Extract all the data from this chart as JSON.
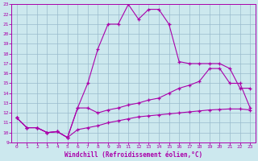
{
  "xlabel": "Windchill (Refroidissement éolien,°C)",
  "bg_color": "#cce8ee",
  "line_color": "#aa00aa",
  "grid_color": "#99bbcc",
  "xlim": [
    -0.5,
    23.5
  ],
  "ylim": [
    9,
    23
  ],
  "xticks": [
    0,
    1,
    2,
    3,
    4,
    5,
    6,
    7,
    8,
    9,
    10,
    11,
    12,
    13,
    14,
    15,
    16,
    17,
    18,
    19,
    20,
    21,
    22,
    23
  ],
  "yticks": [
    9,
    10,
    11,
    12,
    13,
    14,
    15,
    16,
    17,
    18,
    19,
    20,
    21,
    22,
    23
  ],
  "line1_x": [
    0,
    1,
    2,
    3,
    4,
    5,
    6,
    7,
    8,
    9,
    10,
    11,
    12,
    13,
    14,
    15,
    16,
    17,
    18,
    19,
    20,
    21,
    22,
    23
  ],
  "line1_y": [
    11.5,
    10.5,
    10.5,
    10.0,
    10.1,
    9.5,
    12.5,
    15.0,
    18.5,
    21.0,
    21.0,
    23.0,
    21.5,
    22.5,
    22.5,
    21.0,
    17.2,
    17.0,
    17.0,
    17.0,
    17.0,
    16.5,
    14.5,
    14.5
  ],
  "line2_x": [
    0,
    1,
    2,
    3,
    4,
    5,
    6,
    7,
    8,
    9,
    10,
    11,
    12,
    13,
    14,
    15,
    16,
    17,
    18,
    19,
    20,
    21,
    22,
    23
  ],
  "line2_y": [
    11.5,
    10.5,
    10.5,
    10.0,
    10.1,
    9.5,
    12.5,
    12.5,
    12.0,
    12.3,
    12.5,
    12.8,
    13.0,
    13.3,
    13.5,
    14.0,
    14.5,
    14.8,
    15.2,
    16.5,
    16.5,
    15.0,
    15.0,
    12.5
  ],
  "line3_x": [
    0,
    1,
    2,
    3,
    4,
    5,
    6,
    7,
    8,
    9,
    10,
    11,
    12,
    13,
    14,
    15,
    16,
    17,
    18,
    19,
    20,
    21,
    22,
    23
  ],
  "line3_y": [
    11.5,
    10.5,
    10.5,
    10.0,
    10.1,
    9.5,
    10.3,
    10.5,
    10.7,
    11.0,
    11.2,
    11.4,
    11.6,
    11.7,
    11.8,
    11.9,
    12.0,
    12.1,
    12.2,
    12.3,
    12.35,
    12.4,
    12.4,
    12.3
  ]
}
